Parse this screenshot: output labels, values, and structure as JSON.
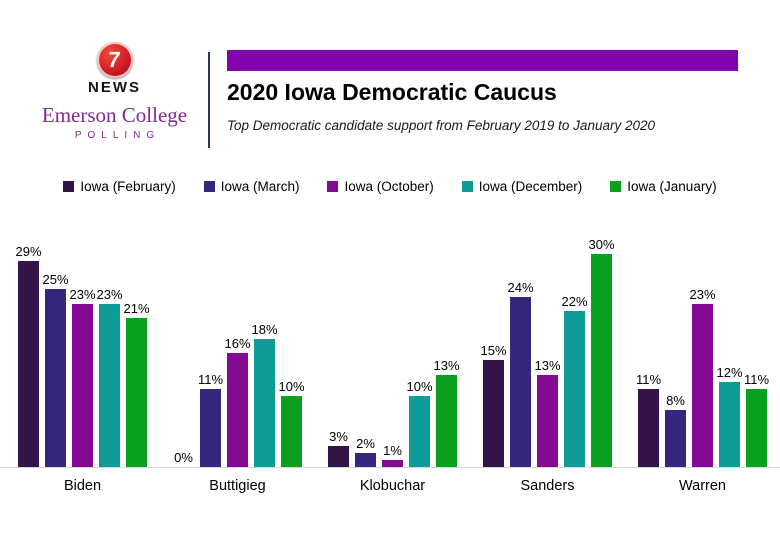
{
  "header": {
    "logo": {
      "number": "7",
      "news_word": "NEWS",
      "brand_line1": "Emerson College",
      "brand_line2": "POLLING"
    },
    "title": "2020 Iowa Democratic Caucus",
    "subtitle": "Top Democratic candidate support from February 2019 to January 2020"
  },
  "colors": {
    "header_bar": "#8203ab",
    "separator": "#1f3864",
    "brand_purple": "#7c2c90",
    "logo_red": "#d01c25",
    "axis_line": "#d6d6d6"
  },
  "chart_data": {
    "type": "bar",
    "title": "2020 Iowa Democratic Caucus",
    "subtitle": "Top Democratic candidate support from February 2019 to January 2020",
    "categories": [
      "Biden",
      "Buttigieg",
      "Klobuchar",
      "Sanders",
      "Warren"
    ],
    "series": [
      {
        "name": "Iowa (February)",
        "color": "#331449",
        "values": [
          29,
          0,
          3,
          15,
          11
        ]
      },
      {
        "name": "Iowa (March)",
        "color": "#36267f",
        "values": [
          25,
          11,
          2,
          24,
          8
        ]
      },
      {
        "name": "Iowa (October)",
        "color": "#850a93",
        "values": [
          23,
          16,
          1,
          13,
          23
        ]
      },
      {
        "name": "Iowa (December)",
        "color": "#0f9b98",
        "values": [
          23,
          18,
          10,
          22,
          12
        ]
      },
      {
        "name": "Iowa (January)",
        "color": "#0aa01f",
        "values": [
          21,
          10,
          13,
          30,
          11
        ]
      }
    ],
    "value_suffix": "%",
    "xlabel": "",
    "ylabel": "",
    "ylim": [
      0,
      30
    ],
    "grid": false,
    "legend_position": "top",
    "data_labels": true
  }
}
